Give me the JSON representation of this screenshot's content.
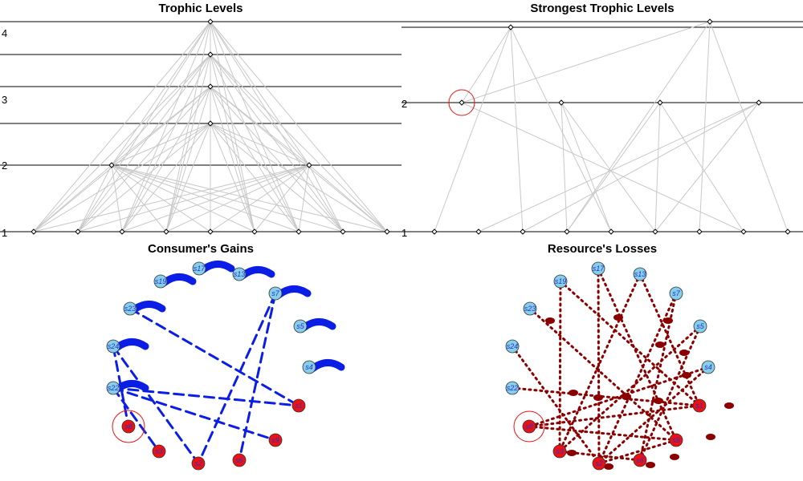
{
  "panels": {
    "trophic": {
      "title": "Trophic Levels",
      "levels": [
        "1",
        "2",
        "3",
        "4"
      ]
    },
    "strongest": {
      "title": "Strongest Trophic Levels",
      "levels": [
        "1",
        "2"
      ]
    },
    "gains": {
      "title": "Consumer's Gains"
    },
    "losses": {
      "title": "Resource's Losses"
    }
  },
  "species_labels": [
    "s19",
    "s17",
    "s13",
    "s7",
    "s23",
    "s5",
    "s24",
    "s4",
    "s22",
    "s1",
    "s8",
    "s9",
    "s3",
    "s2",
    "s6"
  ],
  "colors": {
    "grid_line": "#000000",
    "edge": "#c8c8c8",
    "consumer_node": "#87ceeb",
    "resource_node": "#ee1111",
    "gain_edge": "#0b1ee6",
    "loss_edge": "#8b0000",
    "highlight_ring": "#ee1111"
  }
}
